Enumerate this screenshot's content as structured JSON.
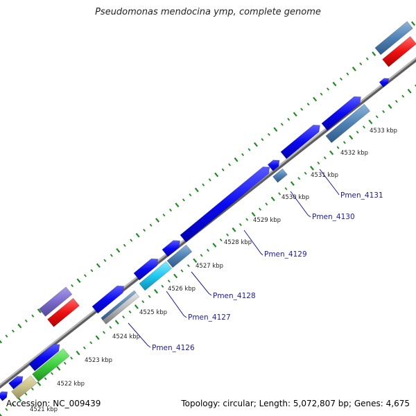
{
  "title": "Pseudomonas mendocina ymp, complete genome",
  "footer": {
    "accession": "Accession: NC_009439",
    "summary": "Topology: circular; Length: 5,072,807 bp; Genes: 4,675"
  },
  "colors": {
    "backbone": "#8c8c8c",
    "tick": "#1f8a1f",
    "gene_label": "#1a1aa6",
    "leader": "#1a1aa6",
    "cds_forward": "#0a0af0",
    "cds_blue_steel": "#4f82b4",
    "red": "#ee1111",
    "purple": "#7a6acc",
    "green": "#3ccf3c",
    "cyan": "#1fc8f0",
    "silver": "#b8b8b8",
    "olive": "#c8c08a"
  },
  "scale_ticks": [
    "4521 kbp",
    "4522 kbp",
    "4523 kbp",
    "4524 kbp",
    "4525 kbp",
    "4526 kbp",
    "4527 kbp",
    "4528 kbp",
    "4529 kbp",
    "4530 kbp",
    "4531 kbp",
    "4532 kbp",
    "4533 kbp"
  ],
  "gene_labels": [
    "Pmen_4126",
    "Pmen_4127",
    "Pmen_4128",
    "Pmen_4129",
    "Pmen_4130",
    "Pmen_4131"
  ]
}
